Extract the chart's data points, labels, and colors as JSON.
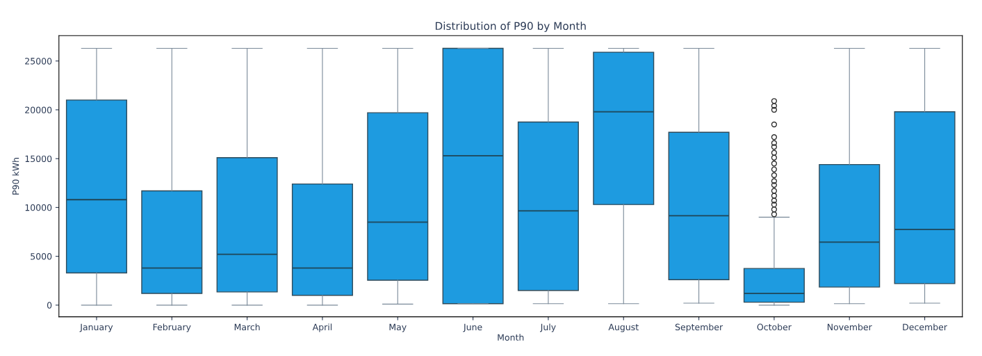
{
  "chart_data": {
    "type": "box",
    "title": "Distribution of P90 by Month",
    "xlabel": "Month",
    "ylabel": "P90 kWh",
    "categories": [
      "January",
      "February",
      "March",
      "April",
      "May",
      "June",
      "July",
      "August",
      "September",
      "October",
      "November",
      "December"
    ],
    "ylim": [
      -1200,
      27600
    ],
    "yticks": [
      0,
      5000,
      10000,
      15000,
      20000,
      25000
    ],
    "grid": false,
    "marker": "circle",
    "series": [
      {
        "color": "#1e9be0",
        "boxes": [
          {
            "low": 0,
            "q1": 3300,
            "median": 10800,
            "q3": 21000,
            "high": 26300
          },
          {
            "low": 0,
            "q1": 1200,
            "median": 3800,
            "q3": 11700,
            "high": 26300
          },
          {
            "low": 0,
            "q1": 1350,
            "median": 5200,
            "q3": 15100,
            "high": 26300
          },
          {
            "low": 0,
            "q1": 1000,
            "median": 3800,
            "q3": 12400,
            "high": 26300
          },
          {
            "low": 100,
            "q1": 2550,
            "median": 8500,
            "q3": 19700,
            "high": 26300
          },
          {
            "low": 150,
            "q1": 150,
            "median": 15300,
            "q3": 26300,
            "high": 26300
          },
          {
            "low": 150,
            "q1": 1500,
            "median": 9650,
            "q3": 18750,
            "high": 26300
          },
          {
            "low": 150,
            "q1": 10300,
            "median": 19800,
            "q3": 25900,
            "high": 26300
          },
          {
            "low": 200,
            "q1": 2600,
            "median": 9150,
            "q3": 17700,
            "high": 26300
          },
          {
            "low": 0,
            "q1": 300,
            "median": 1200,
            "q3": 3750,
            "high": 9000,
            "outliers": [
              20900,
              20400,
              20000,
              18500,
              17200,
              16600,
              16200,
              15600,
              15100,
              14500,
              13900,
              13300,
              12700,
              12300,
              11700,
              11200,
              10700,
              10300,
              9800,
              9300
            ]
          },
          {
            "low": 150,
            "q1": 1850,
            "median": 6450,
            "q3": 14400,
            "high": 26300
          },
          {
            "low": 200,
            "q1": 2200,
            "median": 7750,
            "q3": 19800,
            "high": 26300
          }
        ]
      }
    ]
  }
}
